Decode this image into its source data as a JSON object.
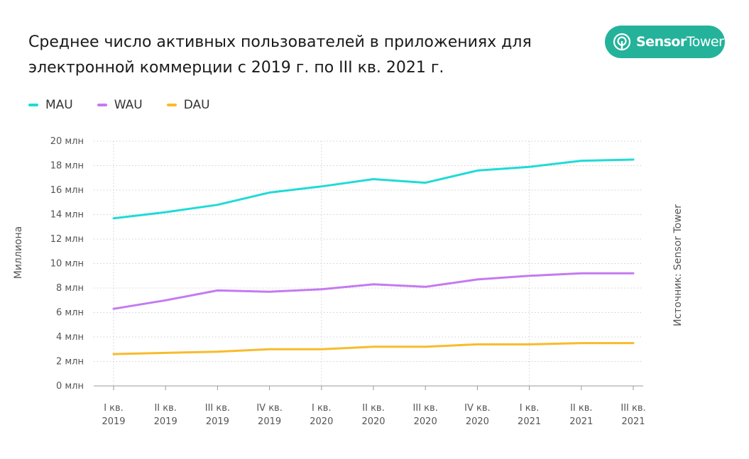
{
  "title_lines": [
    "Среднее число активных пользователей в приложениях для",
    "электронной коммерции с 2019 г. по III кв. 2021 г."
  ],
  "logo": {
    "bold": "Sensor",
    "light": "Tower"
  },
  "source": "Источник: Sensor Tower",
  "colors": {
    "MAU": "#1fdbd6",
    "WAU": "#c47af2",
    "DAU": "#f9bb2b",
    "brand": "#24b29b"
  },
  "chart_data": {
    "type": "line",
    "title": "Среднее число активных пользователей в приложениях для электронной коммерции с 2019 г. по III кв. 2021 г.",
    "ylabel": "Миллиона",
    "ylim": [
      0,
      20
    ],
    "yticks": [
      0,
      2,
      4,
      6,
      8,
      10,
      12,
      14,
      16,
      18,
      20
    ],
    "ytick_labels": [
      "0 млн",
      "2 млн",
      "4 млн",
      "6 млн",
      "8 млн",
      "10 млн",
      "12 млн",
      "14 млн",
      "16 млн",
      "18 млн",
      "20 млн"
    ],
    "categories": [
      [
        "I кв.",
        "2019"
      ],
      [
        "II кв.",
        "2019"
      ],
      [
        "III кв.",
        "2019"
      ],
      [
        "IV кв.",
        "2019"
      ],
      [
        "I кв.",
        "2020"
      ],
      [
        "II кв.",
        "2020"
      ],
      [
        "III кв.",
        "2020"
      ],
      [
        "IV кв.",
        "2020"
      ],
      [
        "I кв.",
        "2021"
      ],
      [
        "II кв.",
        "2021"
      ],
      [
        "III кв.",
        "2021"
      ]
    ],
    "legend_position": "top-left",
    "grid": true,
    "series": [
      {
        "name": "MAU",
        "color": "#1fdbd6",
        "values": [
          13.7,
          14.2,
          14.8,
          15.8,
          16.3,
          16.9,
          16.6,
          17.6,
          17.9,
          18.4,
          18.5
        ]
      },
      {
        "name": "WAU",
        "color": "#c47af2",
        "values": [
          6.3,
          7.0,
          7.8,
          7.7,
          7.9,
          8.3,
          8.1,
          8.7,
          9.0,
          9.2,
          9.2
        ]
      },
      {
        "name": "DAU",
        "color": "#f9bb2b",
        "values": [
          2.6,
          2.7,
          2.8,
          3.0,
          3.0,
          3.2,
          3.2,
          3.4,
          3.4,
          3.5,
          3.5
        ]
      }
    ]
  }
}
